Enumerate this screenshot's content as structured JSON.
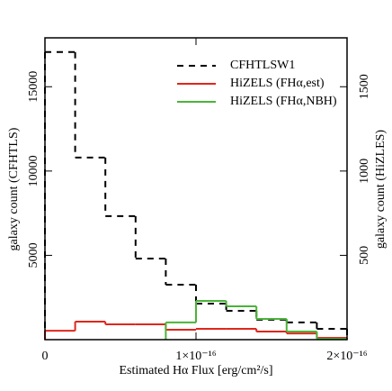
{
  "chart_data": {
    "type": "histogram",
    "x_label": "Estimated  Hα  Flux [erg/cm²/s]",
    "y_label": "galaxy count (CFHTLS)",
    "y2_label": "galaxy count (HiZLES)",
    "bins": [
      0,
      2e-17,
      4e-17,
      6e-17,
      8e-17,
      1e-16,
      1.2e-16,
      1.4e-16,
      1.6e-16,
      1.8e-16,
      2e-16
    ],
    "xlim": [
      0,
      2e-16
    ],
    "xticks": [
      0,
      {
        "value": 1e-16,
        "label": "1×10⁻¹⁶"
      },
      {
        "value": 2e-16,
        "label": "2×10⁻¹⁶"
      }
    ],
    "ylim": [
      0,
      17900
    ],
    "yticks": [
      5000,
      10000,
      15000
    ],
    "y2lim": [
      0,
      1790
    ],
    "y2ticks": [
      500,
      1000,
      1500
    ],
    "legend": "upper right",
    "series": [
      {
        "name": "CFHTLSW1",
        "color": "#000000",
        "dashed": true,
        "values": [
          17060,
          10800,
          7330,
          4810,
          3260,
          2140,
          1710,
          1180,
          1020,
          640
        ]
      },
      {
        "name": "HiZELS (FHα,est)",
        "color": "#e0261c",
        "axis": "y2",
        "values": [
          53,
          107,
          91,
          91,
          59,
          64,
          64,
          48,
          37,
          11
        ]
      },
      {
        "name": "HiZELS (FHα,NBH)",
        "color": "#4bb33a",
        "axis": "y2",
        "values": [
          null,
          null,
          null,
          null,
          102,
          230,
          198,
          123,
          48,
          5
        ]
      }
    ]
  }
}
